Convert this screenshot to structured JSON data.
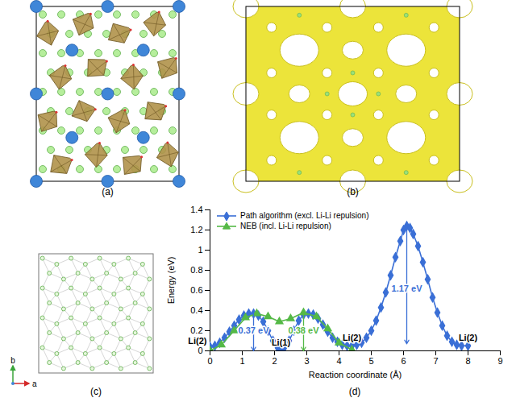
{
  "chart_data": {
    "type": "line",
    "x_label": "Reaction coordinate (Å)",
    "y_label": "Energy (eV)",
    "xlim": [
      0,
      9
    ],
    "xticks": [
      0,
      1,
      2,
      3,
      4,
      5,
      6,
      7,
      8,
      9
    ],
    "ylim": [
      0,
      1.4
    ],
    "yticks": [
      0,
      0.2,
      0.4,
      0.6,
      0.8,
      1,
      1.2,
      1.4
    ],
    "grid": false,
    "legend": "top-left",
    "series": [
      {
        "name": "Path algorithm (excl. Li-Li repulsion)",
        "color": "#3a6fd6",
        "marker": "diamond",
        "line_style": "solid",
        "x": [
          0,
          0.15,
          0.3,
          0.45,
          0.6,
          0.75,
          0.9,
          1.05,
          1.2,
          1.35,
          1.5,
          1.65,
          1.8,
          1.95,
          2.1,
          2.2,
          2.3,
          2.45,
          2.6,
          2.75,
          2.9,
          3.05,
          3.2,
          3.35,
          3.5,
          3.65,
          3.8,
          3.95,
          4.1,
          4.25,
          4.4,
          4.55,
          4.7,
          4.85,
          5.0,
          5.15,
          5.3,
          5.45,
          5.6,
          5.75,
          5.9,
          6.0,
          6.1,
          6.2,
          6.3,
          6.45,
          6.6,
          6.75,
          6.9,
          7.05,
          7.2,
          7.35,
          7.5,
          7.65,
          7.8,
          8.0
        ],
        "values": [
          0.04,
          0.05,
          0.08,
          0.13,
          0.19,
          0.25,
          0.31,
          0.35,
          0.37,
          0.37,
          0.35,
          0.29,
          0.2,
          0.1,
          0.03,
          0.0,
          0.03,
          0.1,
          0.2,
          0.3,
          0.36,
          0.37,
          0.36,
          0.32,
          0.26,
          0.19,
          0.13,
          0.09,
          0.06,
          0.05,
          0.05,
          0.06,
          0.08,
          0.13,
          0.2,
          0.3,
          0.43,
          0.58,
          0.75,
          0.93,
          1.09,
          1.2,
          1.24,
          1.22,
          1.16,
          1.04,
          0.88,
          0.71,
          0.53,
          0.38,
          0.25,
          0.15,
          0.09,
          0.06,
          0.05,
          0.05
        ]
      },
      {
        "name": "NEB (incl. Li-Li repulsion)",
        "color": "#55b947",
        "marker": "triangle",
        "line_style": "solid",
        "x": [
          0,
          0.35,
          0.75,
          1.1,
          1.45,
          1.8,
          2.15,
          2.5,
          2.9,
          3.3,
          3.65,
          4.0,
          4.4
        ],
        "values": [
          0.0,
          0.06,
          0.2,
          0.33,
          0.37,
          0.34,
          0.29,
          0.32,
          0.38,
          0.34,
          0.22,
          0.08,
          0.01
        ]
      }
    ],
    "annotations": [
      {
        "text": "0.37 eV",
        "x": 1.35,
        "y": 0.2,
        "color": "#3a6fd6",
        "arrow": [
          0.37,
          0
        ]
      },
      {
        "text": "0.38 eV",
        "x": 2.9,
        "y": 0.2,
        "color": "#55b947",
        "arrow": [
          0.38,
          0
        ]
      },
      {
        "text": "1.17 eV",
        "x": 6.1,
        "y": 0.62,
        "color": "#3a6fd6",
        "arrow": [
          1.24,
          0.07
        ]
      },
      {
        "text": "Li(2)",
        "x": 0,
        "y": 0.1,
        "color": "#000000"
      },
      {
        "text": "Li(1)",
        "x": 2.2,
        "y": 0.08,
        "color": "#000000"
      },
      {
        "text": "Li(2)",
        "x": 4.4,
        "y": 0.13,
        "color": "#000000"
      },
      {
        "text": "Li(2)",
        "x": 8.0,
        "y": 0.13,
        "color": "#000000"
      }
    ]
  },
  "panels": [
    {
      "label": "(a)"
    },
    {
      "label": "(b)"
    },
    {
      "label": "(c)",
      "axis_labels": [
        "b",
        "a"
      ]
    },
    {
      "label": "(d)"
    }
  ]
}
